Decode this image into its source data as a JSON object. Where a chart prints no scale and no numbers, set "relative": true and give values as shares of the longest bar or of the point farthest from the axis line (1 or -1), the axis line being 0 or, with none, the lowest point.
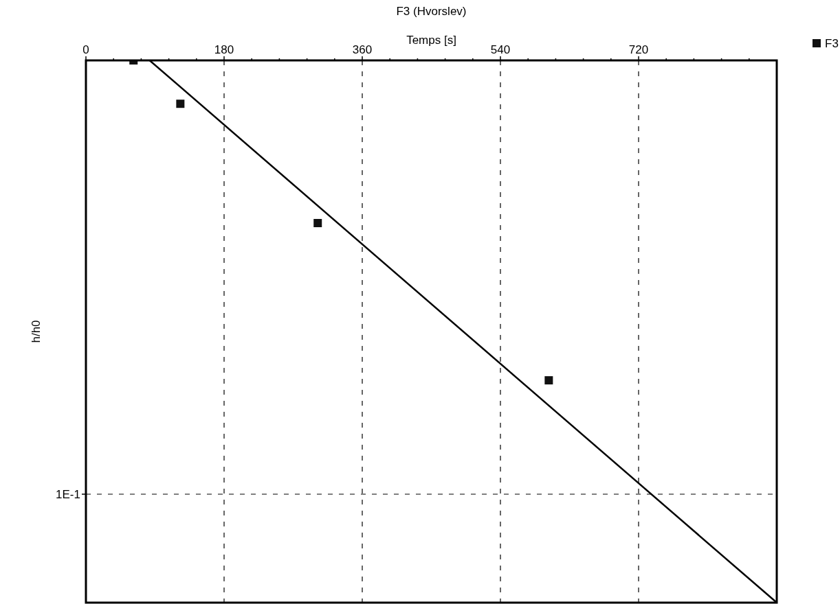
{
  "chart_data": {
    "type": "scatter",
    "title": "F3 (Hvorslev)",
    "xlabel": "Temps [s]",
    "ylabel": "h/h0",
    "xlim": [
      0,
      900
    ],
    "relative": true,
    "grid": "x",
    "legend": "top right",
    "marker": "square",
    "xticks": [
      0,
      {
        "value": 36,
        "label": null
      },
      {
        "value": 72,
        "label": null
      },
      {
        "value": 108,
        "label": null
      },
      {
        "value": 144,
        "label": null
      },
      180,
      {
        "value": 216,
        "label": null
      },
      {
        "value": 252,
        "label": null
      },
      {
        "value": 288,
        "label": null
      },
      {
        "value": 324,
        "label": null
      },
      360,
      {
        "value": 396,
        "label": null
      },
      {
        "value": 432,
        "label": null
      },
      {
        "value": 468,
        "label": null
      },
      {
        "value": 504,
        "label": null
      },
      540,
      {
        "value": 576,
        "label": null
      },
      {
        "value": 612,
        "label": null
      },
      {
        "value": 648,
        "label": null
      },
      {
        "value": 684,
        "label": null
      },
      720,
      {
        "value": 756,
        "label": null
      },
      {
        "value": 792,
        "label": null
      },
      {
        "value": 828,
        "label": null
      },
      {
        "value": 864,
        "label": null
      }
    ],
    "ref_lines": [
      {
        "axis": "y",
        "value": 0.2,
        "label": "1E-1",
        "line_style": "dashed"
      }
    ],
    "series": [
      {
        "name": "F3",
        "color": "#111111",
        "x": [
          62,
          123,
          302,
          603
        ],
        "values": [
          1.0,
          0.92,
          0.7,
          0.41
        ]
      },
      {
        "type": "line",
        "marker": "none",
        "color": "#000000",
        "x": [
          83,
          900
        ],
        "values": [
          1.0,
          0
        ]
      }
    ]
  }
}
